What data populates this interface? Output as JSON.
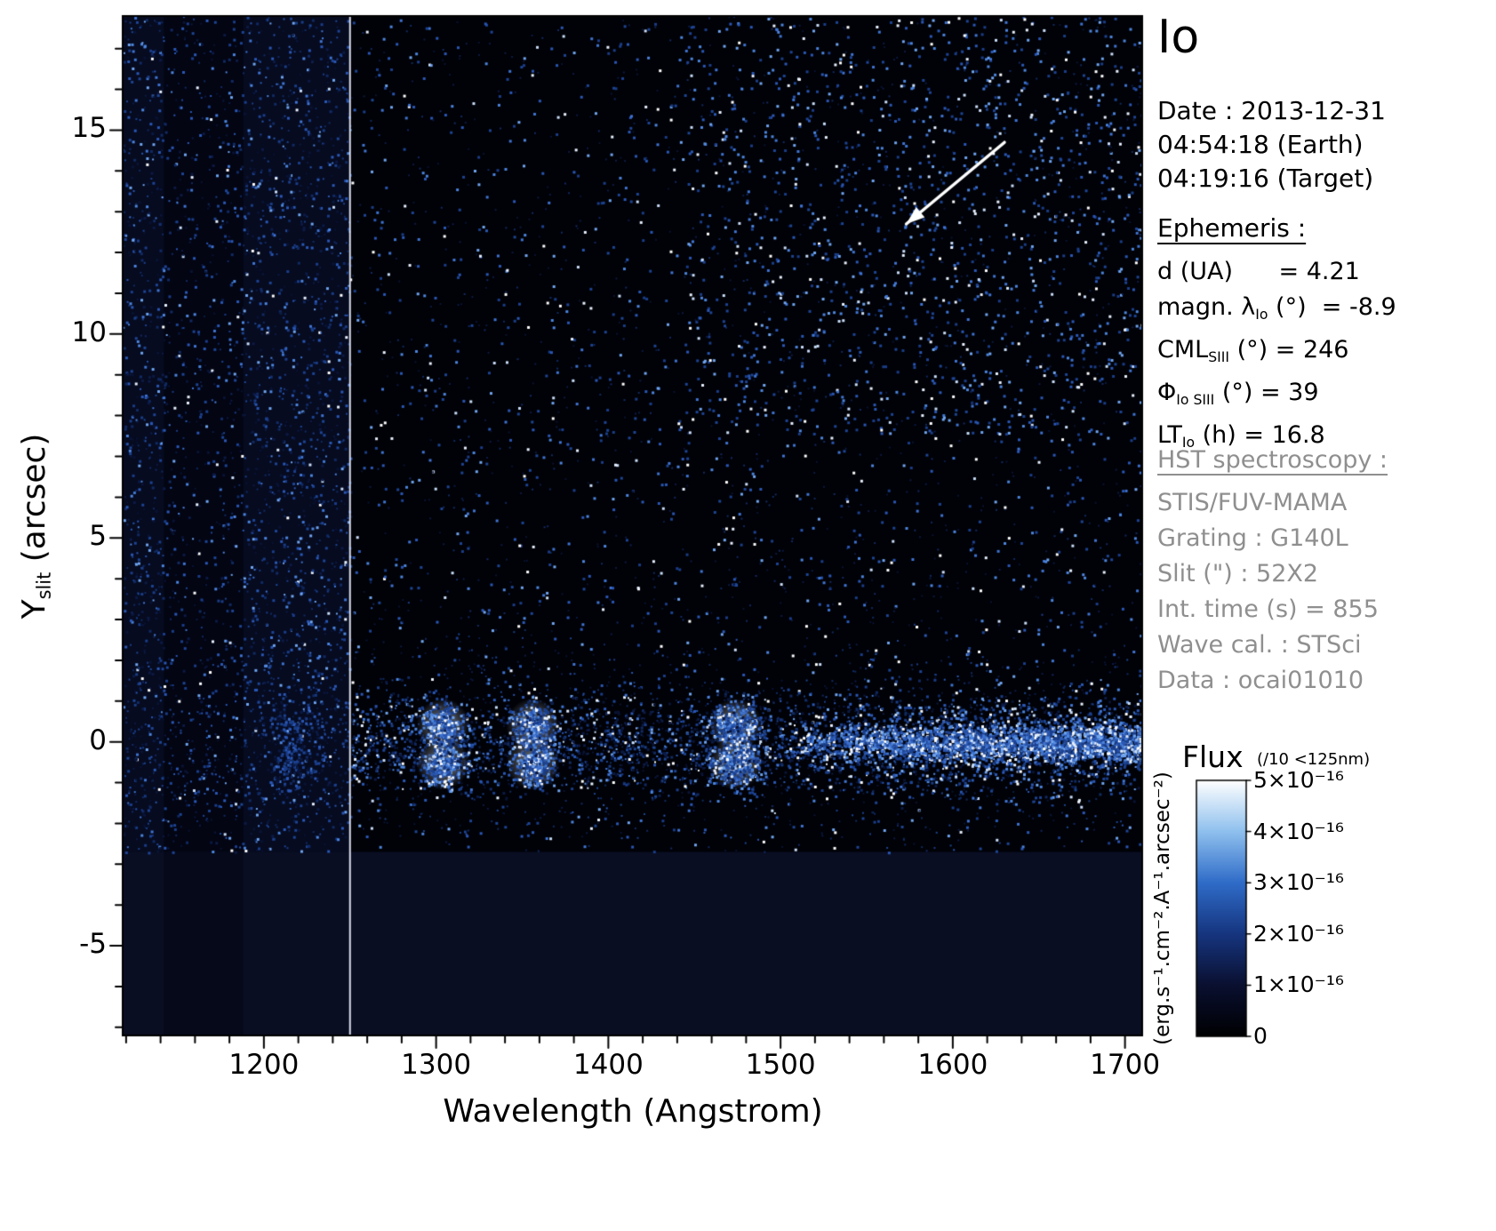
{
  "header": {
    "title": "Io"
  },
  "observation": {
    "date_line": "Date : 2013-12-31",
    "earth_time_line": "04:54:18 (Earth)",
    "target_time_line": "04:19:16 (Target)"
  },
  "ephemeris": {
    "header": "Ephemeris :",
    "rows": [
      {
        "segments": [
          {
            "t": "d (UA)      = 4.21"
          }
        ]
      },
      {
        "segments": [
          {
            "t": "magn. λ"
          },
          {
            "sub": "Io"
          },
          {
            "t": " (°)  = -8.9"
          }
        ]
      },
      {
        "segments": [
          {
            "t": "CML"
          },
          {
            "sub": "SIII"
          },
          {
            "t": " (°) = 246"
          }
        ]
      },
      {
        "segments": [
          {
            "t": "Φ"
          },
          {
            "sub": "Io SIII"
          },
          {
            "t": " (°) = 39"
          }
        ]
      },
      {
        "segments": [
          {
            "t": "LT"
          },
          {
            "sub": "Io"
          },
          {
            "t": " (h) = 16.8"
          }
        ]
      }
    ]
  },
  "hst": {
    "header": "HST spectroscopy :",
    "lines": [
      "STIS/FUV-MAMA",
      "Grating : G140L",
      "Slit (\") : 52X2",
      "Int. time (s) = 855",
      "Wave cal. : STSci",
      "Data : ocai01010"
    ]
  },
  "colorbar": {
    "title": "Flux",
    "scale_note": "(/10 <125nm)",
    "tick_labels": [
      "5×10⁻¹⁶",
      "4×10⁻¹⁶",
      "3×10⁻¹⁶",
      "2×10⁻¹⁶",
      "1×10⁻¹⁶",
      "0"
    ],
    "unit_label": "(erg.s⁻¹.cm⁻².A⁻¹.arcsec⁻²)",
    "gradient_stops": [
      "#000002",
      "#0a1030",
      "#16357f",
      "#2f6cc8",
      "#8fc0ee",
      "#ffffff"
    ]
  },
  "axes": {
    "xlabel": "Wavelength (Angstrom)",
    "ylabel_main": "Y",
    "ylabel_sub": "slit",
    "ylabel_rest": " (arcsec)"
  },
  "chart_data": {
    "type": "heatmap",
    "xlabel": "Wavelength (Angstrom)",
    "ylabel": "Y_slit (arcsec)",
    "xlim": [
      1118,
      1710
    ],
    "ylim": [
      -7.2,
      17.8
    ],
    "x_ticks": [
      1200,
      1300,
      1400,
      1500,
      1600,
      1700
    ],
    "y_ticks": [
      -5,
      0,
      5,
      10,
      15
    ],
    "x_minor_step": 20,
    "y_minor_step": 1,
    "colormap": "black-blue-white",
    "flux_range": [
      0,
      5e-16
    ],
    "no_data_band_below_arcsec": -2.7,
    "divider_wavelength": 1250,
    "dark_column_wavelengths": [
      1142,
      1188
    ],
    "emission_features": [
      {
        "wavelength": 1216,
        "strength": 0.35,
        "width_A": 14
      },
      {
        "wavelength": 1304,
        "strength": 1.0,
        "width_A": 10
      },
      {
        "wavelength": 1356,
        "strength": 0.95,
        "width_A": 10
      },
      {
        "wavelength": 1474,
        "strength": 1.1,
        "width_A": 14
      }
    ],
    "continuum": {
      "from": 1510,
      "to": 1710,
      "y_center": 0,
      "strength": 0.6
    },
    "arrow": {
      "from_wavelength": 1630,
      "from_arcsec": 14.7,
      "to_wavelength": 1573,
      "to_arcsec": 12.7
    },
    "palette": {
      "dim": [
        "#0c1a45",
        "#112a63",
        "#091334"
      ],
      "med": [
        "#1d4494",
        "#2a57b5",
        "#1a3d88"
      ],
      "bright": [
        "#4c85de",
        "#6fa4ef",
        "#3f74d2"
      ],
      "white": [
        "#c9ddf9",
        "#ffffff",
        "#e8f1ff"
      ],
      "w_dim": 0.42,
      "w_med": 0.72,
      "w_bright": 0.9
    }
  }
}
